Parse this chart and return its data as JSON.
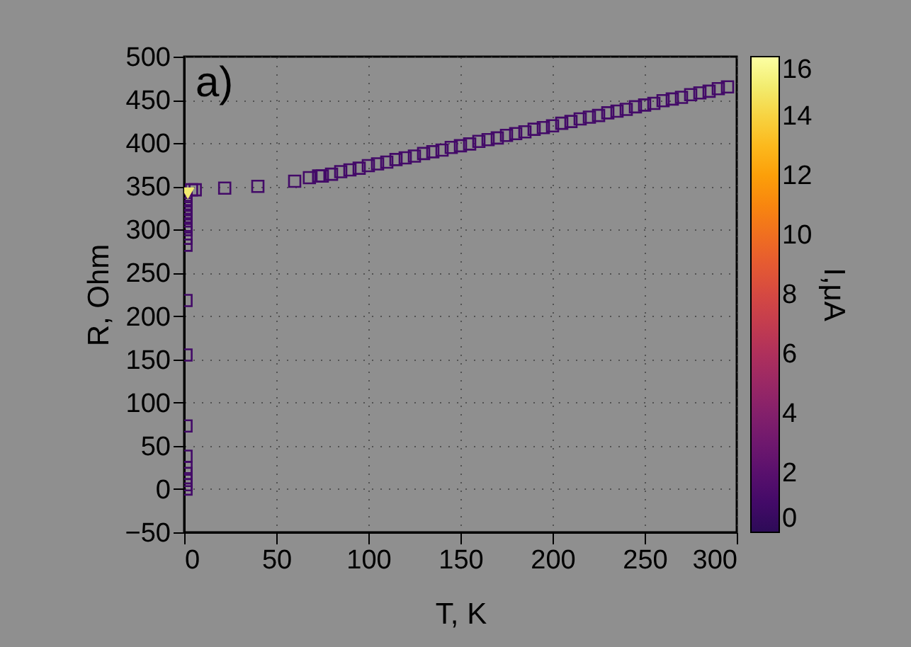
{
  "chart_data": {
    "type": "scatter",
    "xlabel": "T, K",
    "ylabel": "R, Ohm",
    "clabel": "I,μA",
    "annotations": [
      "a)"
    ],
    "xlim": [
      0,
      300
    ],
    "xticks": [
      0,
      50,
      100,
      150,
      200,
      250,
      300
    ],
    "ylim": [
      -50,
      500
    ],
    "yticks": [
      -50,
      0,
      50,
      100,
      150,
      200,
      250,
      300,
      350,
      400,
      450,
      500
    ],
    "clim": [
      0,
      16
    ],
    "cticks": [
      0,
      2,
      4,
      6,
      8,
      10,
      12,
      14,
      16
    ],
    "grid": true,
    "marker": "square",
    "series": [
      {
        "x": [
          1,
          1,
          1,
          1,
          1,
          1,
          1,
          1,
          1,
          1,
          1,
          1,
          1,
          1,
          1,
          1,
          1,
          1,
          1,
          1,
          4,
          6,
          22,
          40,
          60,
          68,
          73,
          75,
          80,
          85,
          90,
          95,
          100,
          105,
          110,
          115,
          120,
          125,
          130,
          135,
          140,
          145,
          150,
          155,
          160,
          165,
          170,
          175,
          180,
          185,
          190,
          195,
          200,
          205,
          210,
          215,
          220,
          225,
          230,
          235,
          240,
          245,
          250,
          255,
          260,
          265,
          270,
          275,
          280,
          285,
          290,
          295
        ],
        "values": [
          0,
          5,
          10,
          18,
          25,
          38,
          73,
          155,
          218,
          282,
          290,
          300,
          305,
          310,
          315,
          320,
          325,
          330,
          335,
          340,
          346,
          346,
          348,
          350,
          356,
          360,
          362,
          362,
          364,
          367,
          369,
          371,
          374,
          376,
          378,
          381,
          383,
          385,
          388,
          390,
          392,
          395,
          397,
          399,
          402,
          404,
          406,
          409,
          411,
          413,
          416,
          418,
          420,
          423,
          425,
          428,
          430,
          432,
          435,
          437,
          439,
          442,
          444,
          446,
          449,
          451,
          453,
          456,
          458,
          460,
          463,
          465
        ],
        "cvalues": [
          1,
          1,
          1,
          1,
          1,
          1,
          1,
          1,
          1,
          1,
          1,
          1,
          1,
          1,
          1,
          1,
          1,
          1,
          1,
          1,
          1,
          1,
          1,
          1,
          1,
          1,
          1,
          1,
          1,
          1,
          1,
          1,
          1,
          1,
          1,
          1,
          1,
          1,
          1,
          1,
          1,
          1,
          1,
          1,
          1,
          1,
          1,
          1,
          1,
          1,
          1,
          1,
          1,
          1,
          1,
          1,
          1,
          1,
          1,
          1,
          1,
          1,
          1,
          1,
          1,
          1,
          1,
          1,
          1,
          1,
          1,
          1
        ]
      },
      {
        "marker": "triangle",
        "x": [
          2
        ],
        "values": [
          342
        ],
        "cvalues": [
          15
        ]
      }
    ]
  }
}
